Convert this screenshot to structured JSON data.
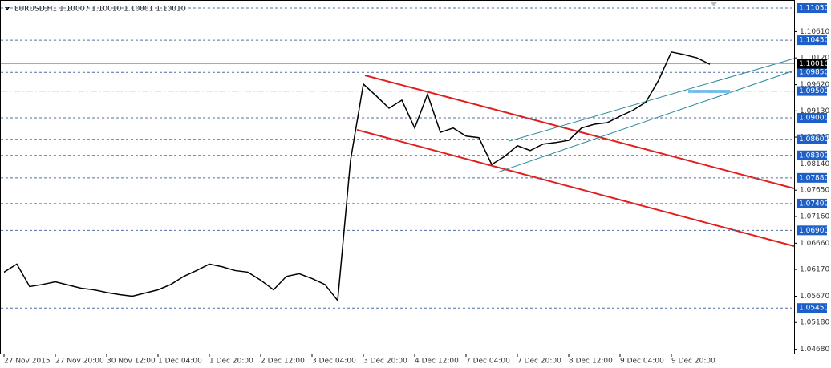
{
  "chart_data": {
    "type": "line",
    "title": "EURUSD,H1  1.10007 1.10010 1.10001 1.10010",
    "color": "#000000",
    "categories": [
      "27 Nov 2015",
      null,
      null,
      null,
      "27 Nov 20:00",
      null,
      null,
      null,
      "30 Nov 12:00",
      null,
      null,
      null,
      "1 Dec 04:00",
      null,
      null,
      null,
      "1 Dec 20:00",
      null,
      null,
      null,
      "2 Dec 12:00",
      null,
      null,
      null,
      "3 Dec 04:00",
      null,
      null,
      null,
      "3 Dec 20:00",
      null,
      null,
      null,
      "4 Dec 12:00",
      null,
      null,
      null,
      "7 Dec 04:00",
      null,
      null,
      null,
      "7 Dec 20:00",
      null,
      null,
      null,
      "8 Dec 12:00",
      null,
      null,
      null,
      "9 Dec 04:00",
      null,
      null,
      null,
      "9 Dec 20:00",
      null,
      null,
      null
    ],
    "values": [
      1.0612,
      1.0627,
      1.0585,
      1.0589,
      1.0594,
      1.0588,
      1.0582,
      1.0579,
      1.0574,
      1.057,
      1.0567,
      1.0573,
      1.0579,
      1.0589,
      1.0604,
      1.0615,
      1.0627,
      1.0622,
      1.0615,
      1.0612,
      1.0597,
      1.0579,
      1.0604,
      1.0609,
      1.06,
      1.0589,
      1.0559,
      1.0821,
      1.0963,
      1.0941,
      1.0918,
      1.0933,
      1.0881,
      1.0944,
      1.0873,
      1.0881,
      1.0866,
      1.0863,
      1.0813,
      1.0828,
      1.0848,
      1.0839,
      1.0851,
      1.0854,
      1.0858,
      1.0881,
      1.0888,
      1.0891,
      1.0903,
      1.0914,
      1.0929,
      1.097,
      1.1023,
      1.1018,
      1.1012,
      1.1
    ],
    "ylim": [
      1.046,
      1.112
    ],
    "yticks": [
      {
        "value": 1.1061,
        "label": "1.10610"
      },
      {
        "value": 1.1012,
        "label": "1.10120"
      },
      {
        "value": 1.0962,
        "label": "1.09620"
      },
      {
        "value": 1.0913,
        "label": "1.09130"
      },
      {
        "value": 1.0864,
        "label": "1.08640"
      },
      {
        "value": 1.0814,
        "label": "1.08140"
      },
      {
        "value": 1.0765,
        "label": "1.07650"
      },
      {
        "value": 1.0716,
        "label": "1.07160"
      },
      {
        "value": 1.0666,
        "label": "1.06660"
      },
      {
        "value": 1.0617,
        "label": "1.06170"
      },
      {
        "value": 1.0567,
        "label": "1.05670"
      },
      {
        "value": 1.0518,
        "label": "1.05180"
      },
      {
        "value": 1.0468,
        "label": "1.04680"
      }
    ],
    "levels": [
      {
        "value": 1.1105,
        "label": "1.11050"
      },
      {
        "value": 1.1045,
        "label": "1.10450"
      },
      {
        "value": 1.0985,
        "label": "1.09850"
      },
      {
        "value": 1.095,
        "label": "1.09500"
      },
      {
        "value": 1.09,
        "label": "1.09000"
      },
      {
        "value": 1.086,
        "label": "1.08600"
      },
      {
        "value": 1.083,
        "label": "1.08300"
      },
      {
        "value": 1.0788,
        "label": "1.07880"
      },
      {
        "value": 1.074,
        "label": "1.07400"
      },
      {
        "value": 1.069,
        "label": "1.06900"
      },
      {
        "value": 1.0545,
        "label": "1.05450"
      }
    ],
    "level_color": "#1c5fc8",
    "current": {
      "value": 1.1001,
      "label": "1.10010"
    }
  }
}
